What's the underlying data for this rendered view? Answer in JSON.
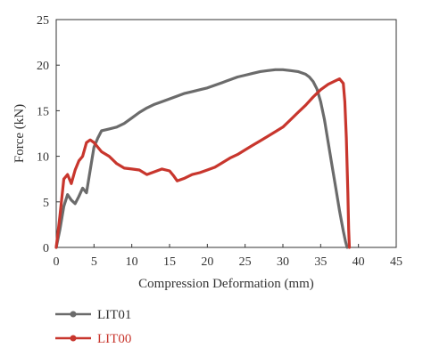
{
  "chart_data": {
    "type": "line",
    "xlabel": "Compression Deformation (mm)",
    "ylabel": "Force (kN)",
    "xlim": [
      0,
      45
    ],
    "ylim": [
      0,
      25
    ],
    "xticks": [
      "0",
      "5",
      "10",
      "15",
      "20",
      "25",
      "30",
      "35",
      "40",
      "45"
    ],
    "yticks": [
      "0",
      "5",
      "10",
      "15",
      "20",
      "25"
    ],
    "grid": false,
    "legend_position": "bottom-left",
    "series": [
      {
        "name": "LIT01",
        "color": "#6b6b6b",
        "x": [
          0,
          0.5,
          1.0,
          1.5,
          2.0,
          2.5,
          3.0,
          3.5,
          4.0,
          4.5,
          5.0,
          5.5,
          6.0,
          7.0,
          8.0,
          9.0,
          10.0,
          11.0,
          12.0,
          13.0,
          14.0,
          15.0,
          16.0,
          17.0,
          18.0,
          19.0,
          20.0,
          21.0,
          22.0,
          23.0,
          24.0,
          25.0,
          26.0,
          27.0,
          28.0,
          29.0,
          30.0,
          31.0,
          32.0,
          33.0,
          33.5,
          34.0,
          34.5,
          35.0,
          35.5,
          36.0,
          36.5,
          37.0,
          37.5,
          38.0,
          38.3,
          38.5
        ],
        "y": [
          0,
          2.0,
          4.5,
          5.8,
          5.2,
          4.8,
          5.6,
          6.5,
          6.0,
          8.5,
          11.0,
          12.0,
          12.8,
          13.0,
          13.2,
          13.6,
          14.2,
          14.8,
          15.3,
          15.7,
          16.0,
          16.3,
          16.6,
          16.9,
          17.1,
          17.3,
          17.5,
          17.8,
          18.1,
          18.4,
          18.7,
          18.9,
          19.1,
          19.3,
          19.4,
          19.5,
          19.5,
          19.4,
          19.3,
          19.0,
          18.7,
          18.2,
          17.4,
          16.0,
          14.0,
          11.5,
          9.0,
          6.5,
          4.0,
          1.8,
          0.6,
          0
        ]
      },
      {
        "name": "LIT00",
        "color": "#c8362d",
        "x": [
          0,
          0.5,
          1.0,
          1.5,
          2.0,
          2.5,
          3.0,
          3.5,
          4.0,
          4.5,
          5.0,
          5.5,
          6.0,
          7.0,
          8.0,
          9.0,
          10.0,
          11.0,
          12.0,
          13.0,
          14.0,
          15.0,
          15.5,
          16.0,
          17.0,
          18.0,
          19.0,
          20.0,
          21.0,
          22.0,
          23.0,
          24.0,
          25.0,
          26.0,
          27.0,
          28.0,
          29.0,
          30.0,
          31.0,
          32.0,
          33.0,
          34.0,
          35.0,
          36.0,
          37.0,
          37.5,
          38.0,
          38.2,
          38.4,
          38.6,
          38.7,
          38.8
        ],
        "y": [
          0,
          3.5,
          7.5,
          8.0,
          7.0,
          8.5,
          9.5,
          10.0,
          11.5,
          11.8,
          11.5,
          11.0,
          10.5,
          10.0,
          9.2,
          8.7,
          8.6,
          8.5,
          8.0,
          8.3,
          8.6,
          8.4,
          7.9,
          7.3,
          7.6,
          8.0,
          8.2,
          8.5,
          8.8,
          9.3,
          9.8,
          10.2,
          10.7,
          11.2,
          11.7,
          12.2,
          12.7,
          13.2,
          14.0,
          14.8,
          15.6,
          16.5,
          17.3,
          17.9,
          18.3,
          18.5,
          18.0,
          16.0,
          12.0,
          6.0,
          2.0,
          0
        ]
      }
    ]
  }
}
